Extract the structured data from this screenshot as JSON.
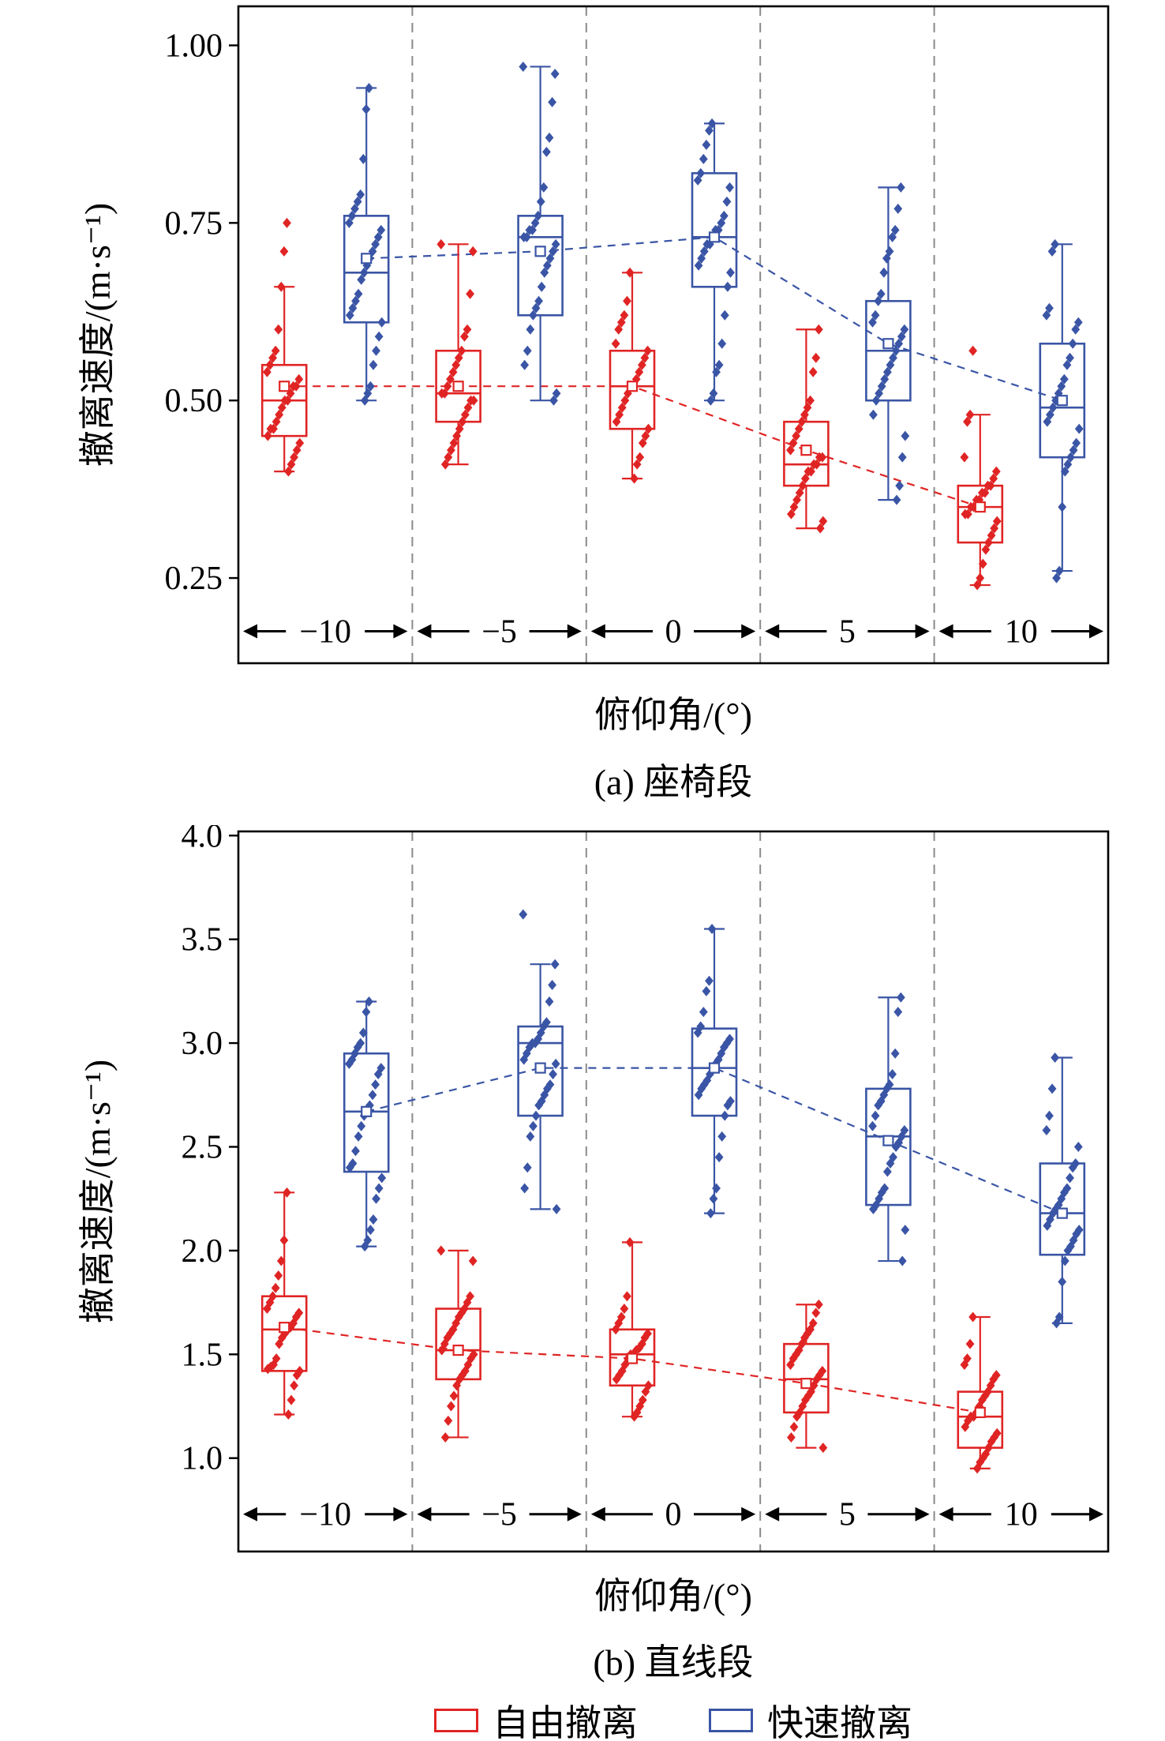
{
  "colors": {
    "free": "#e02424",
    "rapid": "#3a55a5",
    "separator": "#8a8a8a",
    "axis": "#000000"
  },
  "legend": {
    "items": [
      {
        "label": "自由撤离",
        "key": "free"
      },
      {
        "label": "快速撤离",
        "key": "rapid"
      }
    ]
  },
  "chart_data": [
    {
      "id": "a",
      "type": "box",
      "caption": "(a) 座椅段",
      "xlabel": "俯仰角/(°)",
      "ylabel": "撤离速度/(m·s⁻¹)",
      "ylim": [
        0.13,
        1.055
      ],
      "band_value": 0.175,
      "yticks": [
        {
          "v": 0.25,
          "label": "0.25"
        },
        {
          "v": 0.5,
          "label": "0.50"
        },
        {
          "v": 0.75,
          "label": "0.75"
        },
        {
          "v": 1.0,
          "label": "1.00"
        }
      ],
      "categories": [
        "−10",
        "−5",
        "0",
        "5",
        "10"
      ],
      "series": [
        {
          "name": "自由撤离",
          "key": "free",
          "offset": -52,
          "stats": [
            {
              "q1": 0.45,
              "med": 0.5,
              "q3": 0.55,
              "mean": 0.52,
              "lo": 0.4,
              "hi": 0.66
            },
            {
              "q1": 0.47,
              "med": 0.51,
              "q3": 0.57,
              "mean": 0.52,
              "lo": 0.41,
              "hi": 0.72
            },
            {
              "q1": 0.46,
              "med": 0.52,
              "q3": 0.57,
              "mean": 0.52,
              "lo": 0.39,
              "hi": 0.68
            },
            {
              "q1": 0.38,
              "med": 0.41,
              "q3": 0.47,
              "mean": 0.43,
              "lo": 0.32,
              "hi": 0.6
            },
            {
              "q1": 0.3,
              "med": 0.35,
              "q3": 0.38,
              "mean": 0.35,
              "lo": 0.24,
              "hi": 0.48
            }
          ],
          "points": [
            [
              0.75,
              0.71,
              0.66,
              0.6,
              0.57,
              0.56,
              0.55,
              0.54,
              0.53,
              0.52,
              0.52,
              0.51,
              0.5,
              0.5,
              0.49,
              0.48,
              0.47,
              0.46,
              0.46,
              0.45,
              0.44,
              0.43,
              0.42,
              0.41,
              0.4
            ],
            [
              0.72,
              0.71,
              0.65,
              0.6,
              0.59,
              0.57,
              0.56,
              0.55,
              0.54,
              0.53,
              0.52,
              0.51,
              0.51,
              0.5,
              0.5,
              0.49,
              0.48,
              0.47,
              0.46,
              0.45,
              0.44,
              0.43,
              0.42,
              0.41
            ],
            [
              0.68,
              0.64,
              0.62,
              0.61,
              0.6,
              0.58,
              0.57,
              0.56,
              0.55,
              0.54,
              0.53,
              0.52,
              0.52,
              0.51,
              0.5,
              0.49,
              0.48,
              0.47,
              0.46,
              0.45,
              0.44,
              0.42,
              0.41,
              0.39
            ],
            [
              0.6,
              0.56,
              0.54,
              0.5,
              0.49,
              0.48,
              0.47,
              0.46,
              0.45,
              0.44,
              0.43,
              0.42,
              0.42,
              0.41,
              0.41,
              0.4,
              0.4,
              0.39,
              0.38,
              0.37,
              0.36,
              0.35,
              0.34,
              0.33,
              0.32
            ],
            [
              0.57,
              0.48,
              0.47,
              0.42,
              0.4,
              0.39,
              0.38,
              0.38,
              0.37,
              0.37,
              0.36,
              0.36,
              0.35,
              0.35,
              0.34,
              0.34,
              0.33,
              0.32,
              0.31,
              0.3,
              0.29,
              0.27,
              0.25,
              0.24
            ]
          ]
        },
        {
          "name": "快速撤离",
          "key": "rapid",
          "offset": 52,
          "stats": [
            {
              "q1": 0.61,
              "med": 0.68,
              "q3": 0.76,
              "mean": 0.7,
              "lo": 0.5,
              "hi": 0.94
            },
            {
              "q1": 0.62,
              "med": 0.73,
              "q3": 0.76,
              "mean": 0.71,
              "lo": 0.5,
              "hi": 0.97
            },
            {
              "q1": 0.66,
              "med": 0.73,
              "q3": 0.82,
              "mean": 0.73,
              "lo": 0.5,
              "hi": 0.89
            },
            {
              "q1": 0.5,
              "med": 0.57,
              "q3": 0.64,
              "mean": 0.58,
              "lo": 0.36,
              "hi": 0.8
            },
            {
              "q1": 0.42,
              "med": 0.49,
              "q3": 0.58,
              "mean": 0.5,
              "lo": 0.26,
              "hi": 0.72
            }
          ],
          "points": [
            [
              0.94,
              0.91,
              0.84,
              0.79,
              0.78,
              0.77,
              0.76,
              0.75,
              0.74,
              0.73,
              0.72,
              0.71,
              0.7,
              0.69,
              0.68,
              0.67,
              0.65,
              0.64,
              0.63,
              0.62,
              0.61,
              0.59,
              0.57,
              0.55,
              0.52,
              0.51,
              0.5
            ],
            [
              0.97,
              0.96,
              0.92,
              0.87,
              0.85,
              0.8,
              0.78,
              0.76,
              0.75,
              0.74,
              0.74,
              0.73,
              0.73,
              0.72,
              0.71,
              0.7,
              0.69,
              0.68,
              0.66,
              0.64,
              0.63,
              0.62,
              0.6,
              0.57,
              0.55,
              0.51,
              0.5
            ],
            [
              0.89,
              0.88,
              0.86,
              0.84,
              0.82,
              0.81,
              0.8,
              0.78,
              0.76,
              0.75,
              0.74,
              0.74,
              0.73,
              0.72,
              0.72,
              0.71,
              0.7,
              0.69,
              0.68,
              0.66,
              0.62,
              0.58,
              0.55,
              0.54,
              0.51,
              0.5
            ],
            [
              0.8,
              0.77,
              0.74,
              0.73,
              0.71,
              0.7,
              0.68,
              0.65,
              0.64,
              0.62,
              0.61,
              0.6,
              0.59,
              0.58,
              0.57,
              0.56,
              0.55,
              0.54,
              0.53,
              0.52,
              0.51,
              0.5,
              0.48,
              0.45,
              0.42,
              0.38,
              0.36
            ],
            [
              0.72,
              0.71,
              0.63,
              0.62,
              0.61,
              0.6,
              0.58,
              0.56,
              0.55,
              0.53,
              0.52,
              0.51,
              0.5,
              0.49,
              0.48,
              0.47,
              0.46,
              0.44,
              0.43,
              0.42,
              0.41,
              0.4,
              0.35,
              0.26,
              0.25
            ]
          ]
        }
      ]
    },
    {
      "id": "b",
      "type": "box",
      "caption": "(b) 直线段",
      "xlabel": "俯仰角/(°)",
      "ylabel": "撤离速度/(m·s⁻¹)",
      "ylim": [
        0.55,
        4.02
      ],
      "band_value": 0.73,
      "yticks": [
        {
          "v": 1.0,
          "label": "1.0"
        },
        {
          "v": 1.5,
          "label": "1.5"
        },
        {
          "v": 2.0,
          "label": "2.0"
        },
        {
          "v": 2.5,
          "label": "2.5"
        },
        {
          "v": 3.0,
          "label": "3.0"
        },
        {
          "v": 3.5,
          "label": "3.5"
        },
        {
          "v": 4.0,
          "label": "4.0"
        }
      ],
      "categories": [
        "−10",
        "−5",
        "0",
        "5",
        "10"
      ],
      "series": [
        {
          "name": "自由撤离",
          "key": "free",
          "offset": -52,
          "stats": [
            {
              "q1": 1.42,
              "med": 1.62,
              "q3": 1.78,
              "mean": 1.63,
              "lo": 1.21,
              "hi": 2.28
            },
            {
              "q1": 1.38,
              "med": 1.52,
              "q3": 1.72,
              "mean": 1.52,
              "lo": 1.1,
              "hi": 2.0
            },
            {
              "q1": 1.35,
              "med": 1.5,
              "q3": 1.62,
              "mean": 1.48,
              "lo": 1.2,
              "hi": 2.04
            },
            {
              "q1": 1.22,
              "med": 1.38,
              "q3": 1.55,
              "mean": 1.36,
              "lo": 1.05,
              "hi": 1.74
            },
            {
              "q1": 1.05,
              "med": 1.2,
              "q3": 1.32,
              "mean": 1.22,
              "lo": 0.95,
              "hi": 1.68
            }
          ],
          "points": [
            [
              2.28,
              2.05,
              1.95,
              1.88,
              1.82,
              1.78,
              1.75,
              1.72,
              1.7,
              1.68,
              1.65,
              1.63,
              1.62,
              1.6,
              1.58,
              1.55,
              1.48,
              1.45,
              1.44,
              1.43,
              1.42,
              1.4,
              1.35,
              1.28,
              1.21
            ],
            [
              2.0,
              1.95,
              1.78,
              1.75,
              1.72,
              1.7,
              1.68,
              1.65,
              1.62,
              1.6,
              1.58,
              1.55,
              1.52,
              1.5,
              1.48,
              1.45,
              1.42,
              1.4,
              1.38,
              1.35,
              1.3,
              1.25,
              1.18,
              1.1
            ],
            [
              2.04,
              1.78,
              1.72,
              1.68,
              1.65,
              1.62,
              1.6,
              1.58,
              1.55,
              1.53,
              1.52,
              1.5,
              1.5,
              1.48,
              1.45,
              1.42,
              1.4,
              1.38,
              1.35,
              1.32,
              1.28,
              1.25,
              1.22,
              1.2
            ],
            [
              1.74,
              1.7,
              1.65,
              1.62,
              1.6,
              1.58,
              1.55,
              1.52,
              1.5,
              1.48,
              1.45,
              1.42,
              1.4,
              1.38,
              1.35,
              1.32,
              1.3,
              1.28,
              1.25,
              1.22,
              1.2,
              1.15,
              1.1,
              1.05
            ],
            [
              1.68,
              1.55,
              1.48,
              1.45,
              1.4,
              1.38,
              1.35,
              1.32,
              1.3,
              1.28,
              1.25,
              1.22,
              1.2,
              1.2,
              1.18,
              1.15,
              1.12,
              1.1,
              1.08,
              1.05,
              1.02,
              1.0,
              0.98,
              0.95
            ]
          ]
        },
        {
          "name": "快速撤离",
          "key": "rapid",
          "offset": 52,
          "stats": [
            {
              "q1": 2.38,
              "med": 2.67,
              "q3": 2.95,
              "mean": 2.67,
              "lo": 2.02,
              "hi": 3.2
            },
            {
              "q1": 2.65,
              "med": 3.0,
              "q3": 3.08,
              "mean": 2.88,
              "lo": 2.2,
              "hi": 3.38
            },
            {
              "q1": 2.65,
              "med": 2.88,
              "q3": 3.07,
              "mean": 2.88,
              "lo": 2.18,
              "hi": 3.55
            },
            {
              "q1": 2.22,
              "med": 2.55,
              "q3": 2.78,
              "mean": 2.53,
              "lo": 1.95,
              "hi": 3.22
            },
            {
              "q1": 1.98,
              "med": 2.18,
              "q3": 2.42,
              "mean": 2.18,
              "lo": 1.65,
              "hi": 2.93
            }
          ],
          "points": [
            [
              3.2,
              3.15,
              3.05,
              3.0,
              2.98,
              2.95,
              2.92,
              2.9,
              2.88,
              2.85,
              2.8,
              2.75,
              2.7,
              2.68,
              2.65,
              2.6,
              2.55,
              2.48,
              2.42,
              2.4,
              2.35,
              2.3,
              2.25,
              2.15,
              2.1,
              2.05,
              2.02
            ],
            [
              3.62,
              3.38,
              3.28,
              3.2,
              3.1,
              3.08,
              3.05,
              3.02,
              3.0,
              3.0,
              2.98,
              2.95,
              2.92,
              2.9,
              2.85,
              2.8,
              2.78,
              2.75,
              2.72,
              2.7,
              2.65,
              2.6,
              2.55,
              2.4,
              2.3,
              2.2
            ],
            [
              3.55,
              3.3,
              3.25,
              3.15,
              3.08,
              3.05,
              3.02,
              3.0,
              2.98,
              2.95,
              2.92,
              2.9,
              2.88,
              2.85,
              2.82,
              2.8,
              2.78,
              2.75,
              2.72,
              2.7,
              2.65,
              2.55,
              2.45,
              2.3,
              2.25,
              2.18
            ],
            [
              3.22,
              3.15,
              2.95,
              2.85,
              2.8,
              2.78,
              2.75,
              2.72,
              2.7,
              2.65,
              2.6,
              2.58,
              2.55,
              2.52,
              2.5,
              2.45,
              2.42,
              2.38,
              2.3,
              2.28,
              2.25,
              2.22,
              2.2,
              2.1,
              1.95
            ],
            [
              2.93,
              2.78,
              2.65,
              2.58,
              2.5,
              2.42,
              2.4,
              2.35,
              2.3,
              2.28,
              2.25,
              2.22,
              2.2,
              2.18,
              2.15,
              2.12,
              2.1,
              2.08,
              2.05,
              2.02,
              2.0,
              1.95,
              1.85,
              1.68,
              1.65
            ]
          ]
        }
      ]
    }
  ]
}
